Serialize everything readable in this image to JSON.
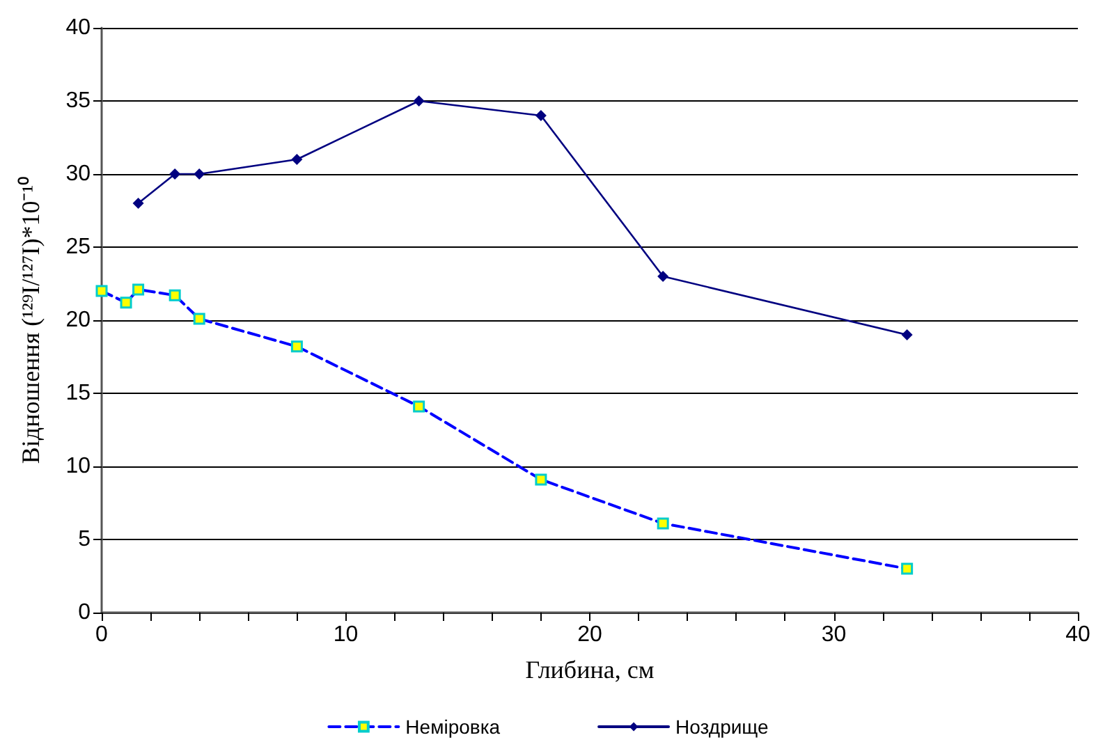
{
  "chart_data": {
    "type": "line",
    "xlabel": "Глибина, см",
    "ylabel": "Відношення (¹²⁹I/¹²⁷I)*10⁻¹⁰",
    "xlim": [
      0,
      40
    ],
    "xticks": [
      0,
      10,
      20,
      30,
      40
    ],
    "ylim": [
      0,
      40
    ],
    "yticks": [
      0,
      5,
      10,
      15,
      20,
      25,
      30,
      35,
      40
    ],
    "grid": "y",
    "legend": "bottom",
    "series": [
      {
        "name": "Неміровка",
        "color": "#0000ff",
        "marker": "square",
        "line_style": "dashed",
        "x": [
          0,
          1,
          1.5,
          3,
          4,
          8,
          13,
          18,
          23,
          33
        ],
        "values": [
          22,
          21.2,
          22.1,
          21.7,
          20.1,
          18.2,
          14.1,
          9.1,
          6.1,
          3
        ]
      },
      {
        "name": "Ноздрище",
        "color": "#000080",
        "marker": "diamond",
        "line_style": "solid",
        "x": [
          1.5,
          3,
          4,
          8,
          13,
          18,
          23,
          33
        ],
        "values": [
          28,
          30,
          30,
          31,
          35,
          34,
          23,
          19
        ]
      }
    ]
  }
}
